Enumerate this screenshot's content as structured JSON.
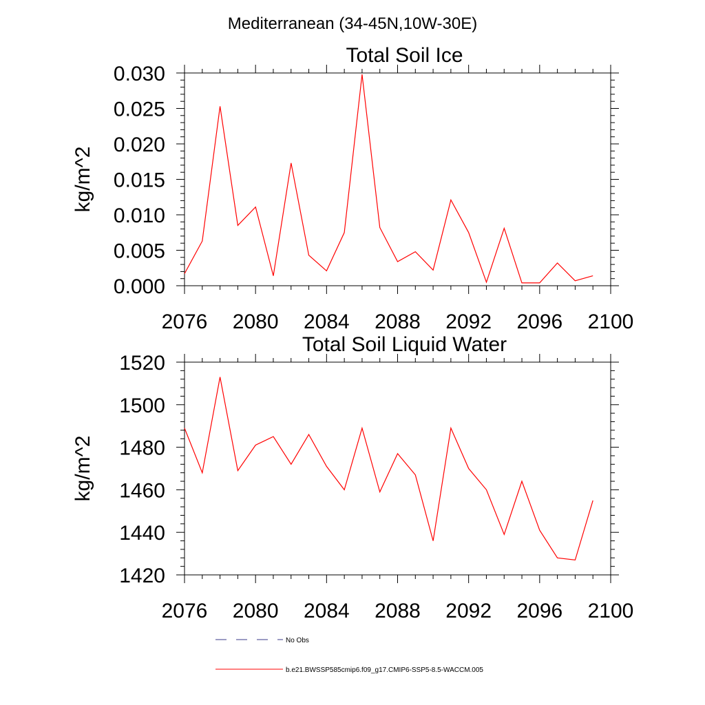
{
  "page": {
    "suptitle": "Mediterranean (34-45N,10W-30E)"
  },
  "chart_data": [
    {
      "type": "line",
      "title": "Total Soil Ice",
      "xlabel": "",
      "ylabel": "kg/m^2",
      "xlim": [
        2076,
        2100
      ],
      "ylim": [
        0,
        0.03
      ],
      "xticks": [
        2076,
        2080,
        2084,
        2088,
        2092,
        2096,
        2100
      ],
      "yticks": [
        0.0,
        0.005,
        0.01,
        0.015,
        0.02,
        0.025,
        0.03
      ],
      "ytick_labels": [
        "0.000",
        "0.005",
        "0.010",
        "0.015",
        "0.020",
        "0.025",
        "0.030"
      ],
      "grid": false,
      "x": [
        2076,
        2077,
        2078,
        2079,
        2080,
        2081,
        2082,
        2083,
        2084,
        2085,
        2086,
        2087,
        2088,
        2089,
        2090,
        2091,
        2092,
        2093,
        2094,
        2095,
        2096,
        2097,
        2098,
        2099
      ],
      "series": [
        {
          "name": "b.e21.BWSSP585cmip6.f09_g17.CMIP6-SSP5-8.5-WACCM.005",
          "color": "#ff0000",
          "values": [
            0.0017,
            0.0063,
            0.0253,
            0.0085,
            0.0111,
            0.0014,
            0.0173,
            0.0043,
            0.0021,
            0.0075,
            0.0298,
            0.0082,
            0.0034,
            0.0048,
            0.0022,
            0.0121,
            0.0075,
            0.0005,
            0.0081,
            0.0004,
            0.0004,
            0.0032,
            0.0007,
            0.0014
          ]
        }
      ]
    },
    {
      "type": "line",
      "title": "Total Soil Liquid Water",
      "xlabel": "",
      "ylabel": "kg/m^2",
      "xlim": [
        2076,
        2100
      ],
      "ylim": [
        1420,
        1520
      ],
      "xticks": [
        2076,
        2080,
        2084,
        2088,
        2092,
        2096,
        2100
      ],
      "yticks": [
        1420,
        1440,
        1460,
        1480,
        1500,
        1520
      ],
      "ytick_labels": [
        "1420",
        "1440",
        "1460",
        "1480",
        "1500",
        "1520"
      ],
      "grid": false,
      "x": [
        2076,
        2077,
        2078,
        2079,
        2080,
        2081,
        2082,
        2083,
        2084,
        2085,
        2086,
        2087,
        2088,
        2089,
        2090,
        2091,
        2092,
        2093,
        2094,
        2095,
        2096,
        2097,
        2098,
        2099
      ],
      "series": [
        {
          "name": "b.e21.BWSSP585cmip6.f09_g17.CMIP6-SSP5-8.5-WACCM.005",
          "color": "#ff0000",
          "values": [
            1489,
            1468,
            1513,
            1469,
            1481,
            1485,
            1472,
            1486,
            1471,
            1460,
            1489,
            1459,
            1477,
            1467,
            1436,
            1489,
            1470,
            1460,
            1439,
            1464,
            1441,
            1428,
            1427,
            1455
          ]
        }
      ]
    }
  ],
  "legend": {
    "placement": "bottom",
    "entries": [
      {
        "label": "No Obs",
        "color": "#3a3a8a",
        "style": "dashed"
      },
      {
        "label": "b.e21.BWSSP585cmip6.f09_g17.CMIP6-SSP5-8.5-WACCM.005",
        "color": "#ff0000",
        "style": "solid"
      }
    ]
  }
}
